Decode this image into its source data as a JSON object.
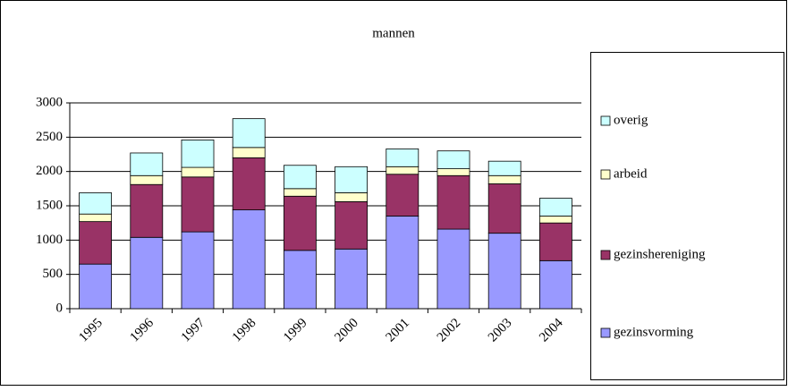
{
  "chart_data": {
    "type": "stacked_bar",
    "title": "mannen",
    "categories": [
      "1995",
      "1996",
      "1997",
      "1998",
      "1999",
      "2000",
      "2001",
      "2002",
      "2003",
      "2004"
    ],
    "series": [
      {
        "name": "gezinsvorming",
        "color": "#9999ff",
        "values": [
          650,
          1040,
          1120,
          1440,
          850,
          870,
          1350,
          1160,
          1100,
          700
        ]
      },
      {
        "name": "gezinshereniging",
        "color": "#993366",
        "values": [
          620,
          770,
          800,
          760,
          790,
          690,
          610,
          780,
          720,
          550
        ]
      },
      {
        "name": "arbeid",
        "color": "#ffffcc",
        "values": [
          110,
          130,
          140,
          150,
          110,
          130,
          110,
          100,
          120,
          100
        ]
      },
      {
        "name": "overig",
        "color": "#ccffff",
        "values": [
          310,
          330,
          400,
          420,
          340,
          380,
          260,
          260,
          210,
          260
        ]
      }
    ],
    "ylim": [
      0,
      3000
    ],
    "yticks": [
      0,
      500,
      1000,
      1500,
      2000,
      2500,
      3000
    ],
    "grid": true,
    "legend": "right"
  }
}
